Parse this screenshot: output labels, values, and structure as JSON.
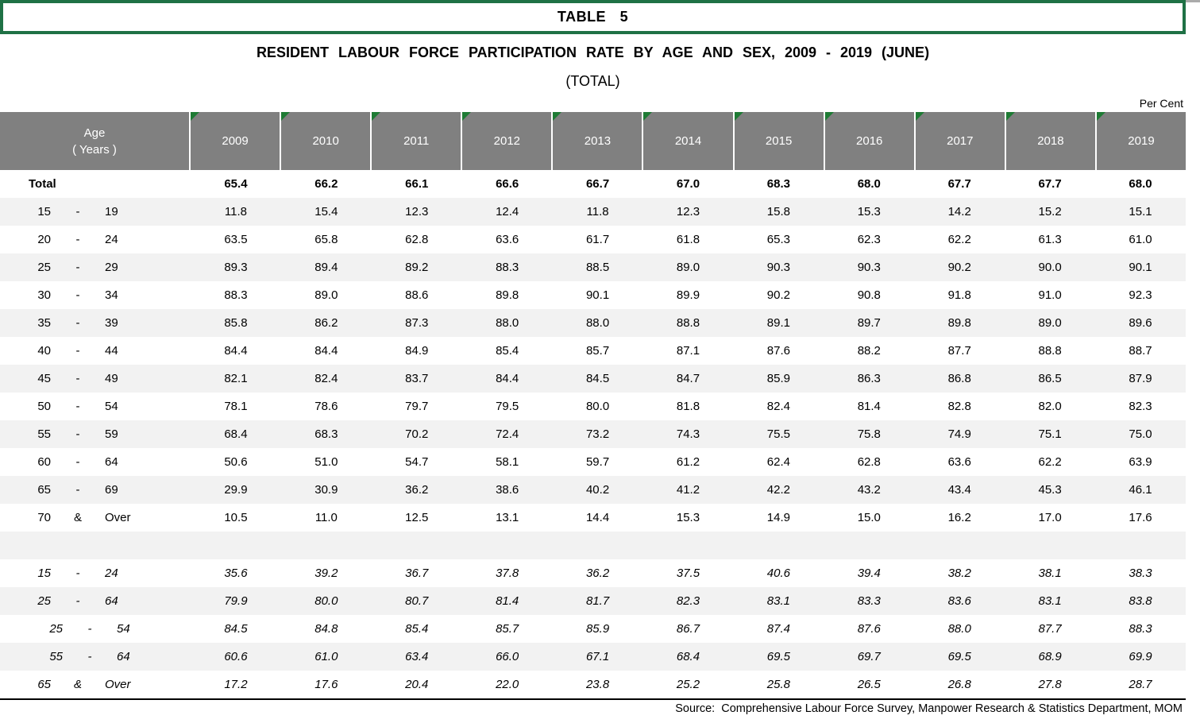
{
  "header_box": {
    "label": "TABLE 5"
  },
  "title": "RESIDENT LABOUR FORCE PARTICIPATION RATE BY AGE AND SEX, 2009 - 2019 (JUNE)",
  "subtitle": "(TOTAL)",
  "unit_label": "Per Cent",
  "source": "Source:  Comprehensive Labour Force Survey, Manpower Research & Statistics Department, MOM",
  "colors": {
    "accent_green_border": "#1F7145",
    "accent_green_triangle": "#1E7B34",
    "header_gray": "#808080",
    "stripe_gray": "#F2F2F2",
    "text": "#000000"
  },
  "table": {
    "age_header": {
      "line1": "Age",
      "line2": "( Years )"
    },
    "years": [
      "2009",
      "2010",
      "2011",
      "2012",
      "2013",
      "2014",
      "2015",
      "2016",
      "2017",
      "2018",
      "2019"
    ],
    "rows": [
      {
        "style": "total",
        "label": {
          "text": "Total"
        },
        "values": [
          "65.4",
          "66.2",
          "66.1",
          "66.6",
          "66.7",
          "67.0",
          "68.3",
          "68.0",
          "67.7",
          "67.7",
          "68.0"
        ]
      },
      {
        "style": "range",
        "label": {
          "from": "15",
          "sep": "-",
          "to": "19"
        },
        "values": [
          "11.8",
          "15.4",
          "12.3",
          "12.4",
          "11.8",
          "12.3",
          "15.8",
          "15.3",
          "14.2",
          "15.2",
          "15.1"
        ]
      },
      {
        "style": "range",
        "label": {
          "from": "20",
          "sep": "-",
          "to": "24"
        },
        "values": [
          "63.5",
          "65.8",
          "62.8",
          "63.6",
          "61.7",
          "61.8",
          "65.3",
          "62.3",
          "62.2",
          "61.3",
          "61.0"
        ]
      },
      {
        "style": "range",
        "label": {
          "from": "25",
          "sep": "-",
          "to": "29"
        },
        "values": [
          "89.3",
          "89.4",
          "89.2",
          "88.3",
          "88.5",
          "89.0",
          "90.3",
          "90.3",
          "90.2",
          "90.0",
          "90.1"
        ]
      },
      {
        "style": "range",
        "label": {
          "from": "30",
          "sep": "-",
          "to": "34"
        },
        "values": [
          "88.3",
          "89.0",
          "88.6",
          "89.8",
          "90.1",
          "89.9",
          "90.2",
          "90.8",
          "91.8",
          "91.0",
          "92.3"
        ]
      },
      {
        "style": "range",
        "label": {
          "from": "35",
          "sep": "-",
          "to": "39"
        },
        "values": [
          "85.8",
          "86.2",
          "87.3",
          "88.0",
          "88.0",
          "88.8",
          "89.1",
          "89.7",
          "89.8",
          "89.0",
          "89.6"
        ]
      },
      {
        "style": "range",
        "label": {
          "from": "40",
          "sep": "-",
          "to": "44"
        },
        "values": [
          "84.4",
          "84.4",
          "84.9",
          "85.4",
          "85.7",
          "87.1",
          "87.6",
          "88.2",
          "87.7",
          "88.8",
          "88.7"
        ]
      },
      {
        "style": "range",
        "label": {
          "from": "45",
          "sep": "-",
          "to": "49"
        },
        "values": [
          "82.1",
          "82.4",
          "83.7",
          "84.4",
          "84.5",
          "84.7",
          "85.9",
          "86.3",
          "86.8",
          "86.5",
          "87.9"
        ]
      },
      {
        "style": "range",
        "label": {
          "from": "50",
          "sep": "-",
          "to": "54"
        },
        "values": [
          "78.1",
          "78.6",
          "79.7",
          "79.5",
          "80.0",
          "81.8",
          "82.4",
          "81.4",
          "82.8",
          "82.0",
          "82.3"
        ]
      },
      {
        "style": "range",
        "label": {
          "from": "55",
          "sep": "-",
          "to": "59"
        },
        "values": [
          "68.4",
          "68.3",
          "70.2",
          "72.4",
          "73.2",
          "74.3",
          "75.5",
          "75.8",
          "74.9",
          "75.1",
          "75.0"
        ]
      },
      {
        "style": "range",
        "label": {
          "from": "60",
          "sep": "-",
          "to": "64"
        },
        "values": [
          "50.6",
          "51.0",
          "54.7",
          "58.1",
          "59.7",
          "61.2",
          "62.4",
          "62.8",
          "63.6",
          "62.2",
          "63.9"
        ]
      },
      {
        "style": "range",
        "label": {
          "from": "65",
          "sep": "-",
          "to": "69"
        },
        "values": [
          "29.9",
          "30.9",
          "36.2",
          "38.6",
          "40.2",
          "41.2",
          "42.2",
          "43.2",
          "43.4",
          "45.3",
          "46.1"
        ]
      },
      {
        "style": "range",
        "label": {
          "from": "70",
          "sep": "&",
          "to": "Over"
        },
        "values": [
          "10.5",
          "11.0",
          "12.5",
          "13.1",
          "14.4",
          "15.3",
          "14.9",
          "15.0",
          "16.2",
          "17.0",
          "17.6"
        ]
      },
      {
        "style": "spacer",
        "label": null,
        "values": []
      },
      {
        "style": "summary",
        "label": {
          "from": "15",
          "sep": "-",
          "to": "24"
        },
        "values": [
          "35.6",
          "39.2",
          "36.7",
          "37.8",
          "36.2",
          "37.5",
          "40.6",
          "39.4",
          "38.2",
          "38.1",
          "38.3"
        ]
      },
      {
        "style": "summary",
        "label": {
          "from": "25",
          "sep": "-",
          "to": "64"
        },
        "values": [
          "79.9",
          "80.0",
          "80.7",
          "81.4",
          "81.7",
          "82.3",
          "83.1",
          "83.3",
          "83.6",
          "83.1",
          "83.8"
        ]
      },
      {
        "style": "summary-indent",
        "label": {
          "from": "25",
          "sep": "-",
          "to": "54"
        },
        "values": [
          "84.5",
          "84.8",
          "85.4",
          "85.7",
          "85.9",
          "86.7",
          "87.4",
          "87.6",
          "88.0",
          "87.7",
          "88.3"
        ]
      },
      {
        "style": "summary-indent",
        "label": {
          "from": "55",
          "sep": "-",
          "to": "64"
        },
        "values": [
          "60.6",
          "61.0",
          "63.4",
          "66.0",
          "67.1",
          "68.4",
          "69.5",
          "69.7",
          "69.5",
          "68.9",
          "69.9"
        ]
      },
      {
        "style": "summary",
        "label": {
          "from": "65",
          "sep": "&",
          "to": "Over"
        },
        "values": [
          "17.2",
          "17.6",
          "20.4",
          "22.0",
          "23.8",
          "25.2",
          "25.8",
          "26.5",
          "26.8",
          "27.8",
          "28.7"
        ]
      }
    ]
  }
}
